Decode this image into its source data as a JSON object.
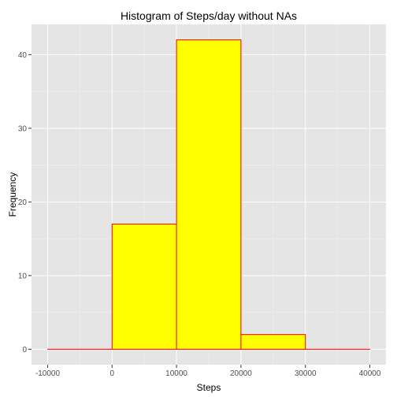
{
  "chart_data": {
    "type": "bar",
    "title": "Histogram of Steps/day without NAs",
    "xlabel": "Steps",
    "ylabel": "Frequency",
    "xlim": [
      -12500,
      42500
    ],
    "ylim": [
      -2.1,
      44.1
    ],
    "x_ticks": [
      -10000,
      0,
      10000,
      20000,
      30000,
      40000
    ],
    "x_tick_labels": [
      "-10000",
      "0",
      "10000",
      "20000",
      "30000",
      "40000"
    ],
    "y_ticks": [
      0,
      10,
      20,
      30,
      40
    ],
    "y_tick_labels": [
      "0",
      "10",
      "20",
      "30",
      "40"
    ],
    "bins": [
      {
        "x0": -10000,
        "x1": 0,
        "count": 0
      },
      {
        "x0": 0,
        "x1": 10000,
        "count": 17
      },
      {
        "x0": 10000,
        "x1": 20000,
        "count": 42
      },
      {
        "x0": 20000,
        "x1": 30000,
        "count": 2
      },
      {
        "x0": 30000,
        "x1": 40000,
        "count": 0
      }
    ],
    "bar_fill": "#ffff00",
    "bar_stroke": "#ff0000",
    "panel_background": "#e5e5e5",
    "grid_color": "#ffffff",
    "grid": true
  }
}
